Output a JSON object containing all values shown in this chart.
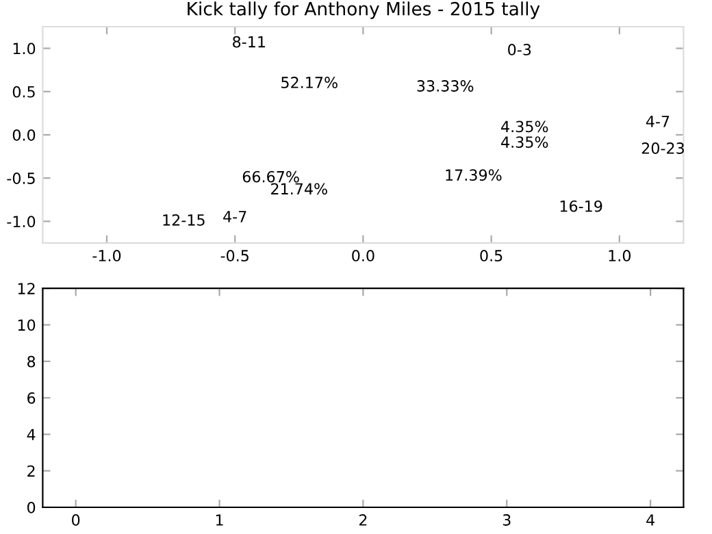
{
  "chart_data": [
    {
      "type": "scatter",
      "title": "Kick tally for Anthony Miles - 2015 tally",
      "xlim": [
        -1.25,
        1.25
      ],
      "ylim": [
        -1.25,
        1.25
      ],
      "xticks": [
        {
          "value": -1,
          "label": "-1.0"
        },
        {
          "value": -0.5,
          "label": "-0.5"
        },
        {
          "value": 0,
          "label": "0.0"
        },
        {
          "value": 0.5,
          "label": "0.5"
        },
        {
          "value": 1,
          "label": "1.0"
        }
      ],
      "yticks": [
        {
          "value": -1,
          "label": "-1.0"
        },
        {
          "value": -0.5,
          "label": "-0.5"
        },
        {
          "value": 0,
          "label": "0.0"
        },
        {
          "value": 0.5,
          "label": "0.5"
        },
        {
          "value": 1,
          "label": "1.0"
        }
      ],
      "annotations": [
        "8-11",
        "52.17%",
        "33.33%",
        "0-3",
        "4.35%",
        "4.35%",
        "4-7",
        "20-23",
        "17.39%",
        "16-19",
        "66.67%",
        "21.74%",
        "12-15",
        "4-7"
      ]
    },
    {
      "type": "bar",
      "xlim": [
        -0.23,
        4.23
      ],
      "ylim": [
        0,
        12
      ],
      "xticks": [
        0,
        1,
        2,
        3,
        4
      ],
      "yticks": [
        0,
        2,
        4,
        6,
        8,
        10,
        12
      ]
    }
  ]
}
